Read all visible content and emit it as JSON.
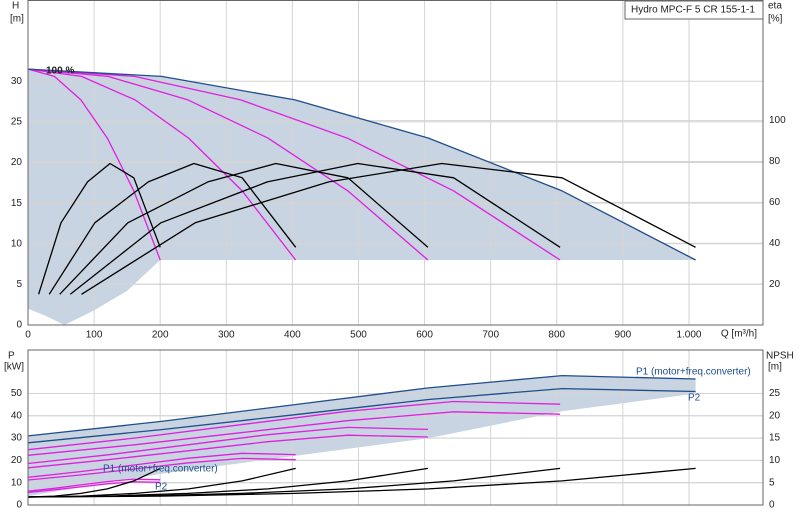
{
  "chart_data": [
    {
      "type": "line",
      "title": "Hydro MPC-F 5 CR 155-1-1",
      "ylabel": [
        "H",
        "[m]"
      ],
      "y2label": [
        "eta",
        "[%]"
      ],
      "xlabel": "Q [m³/h]",
      "annotations": [
        "100 %"
      ],
      "xlim": [
        0,
        1112
      ],
      "xticks": [
        0,
        100,
        200,
        300,
        400,
        500,
        600,
        700,
        800,
        900,
        {
          "value": 1000,
          "label": "1.000"
        }
      ],
      "ylim": [
        0,
        40
      ],
      "yticks": [
        0,
        5,
        10,
        15,
        20,
        25,
        30
      ],
      "y2lim": [
        0,
        159
      ],
      "y2ticks": [
        20,
        40,
        60,
        80,
        100
      ],
      "grid": true,
      "series": [
        {
          "fill": "#c8d4e1",
          "x": [
            0,
            202,
            404,
            606,
            808,
            1010,
            1010,
            200,
            150,
            100,
            55,
            25,
            0
          ],
          "values": [
            31.5,
            30.6,
            27.7,
            23,
            16.5,
            8,
            8,
            8,
            4.2,
            1.8,
            0,
            1.2,
            2
          ]
        },
        {
          "color": "#e020e0",
          "x": [
            0,
            40,
            80,
            120,
            160,
            200
          ],
          "values": [
            31.5,
            30.6,
            27.7,
            23,
            16.5,
            8
          ]
        },
        {
          "color": "#e020e0",
          "x": [
            0,
            81,
            162,
            243,
            324,
            405
          ],
          "values": [
            31.5,
            30.6,
            27.7,
            23,
            16.5,
            8
          ]
        },
        {
          "color": "#e020e0",
          "x": [
            0,
            121,
            242,
            363,
            484,
            605
          ],
          "values": [
            31.5,
            30.6,
            27.7,
            23,
            16.5,
            8
          ]
        },
        {
          "color": "#e020e0",
          "x": [
            0,
            161,
            322,
            483,
            644,
            805
          ],
          "values": [
            31.5,
            30.6,
            27.7,
            23,
            16.5,
            8
          ]
        },
        {
          "color": "#1f4e8c",
          "x": [
            0,
            202,
            404,
            606,
            808,
            1010
          ],
          "values": [
            31.5,
            30.6,
            27.7,
            23,
            16.5,
            8
          ]
        },
        {
          "color": "#000000",
          "axis": "y2",
          "x": [
            16,
            50,
            90,
            124,
            160,
            200
          ],
          "values": [
            15,
            50,
            70,
            79,
            72,
            38
          ]
        },
        {
          "color": "#000000",
          "axis": "y2",
          "x": [
            32,
            101,
            182,
            251,
            324,
            405
          ],
          "values": [
            15,
            50,
            70,
            79,
            72,
            38
          ]
        },
        {
          "color": "#000000",
          "axis": "y2",
          "x": [
            48,
            151,
            272,
            375,
            484,
            605
          ],
          "values": [
            15,
            50,
            70,
            79,
            72,
            38
          ]
        },
        {
          "color": "#000000",
          "axis": "y2",
          "x": [
            64,
            201,
            362,
            499,
            644,
            805
          ],
          "values": [
            15,
            50,
            70,
            79,
            72,
            38
          ]
        },
        {
          "color": "#000000",
          "axis": "y2",
          "x": [
            81,
            253,
            455,
            626,
            808,
            1010
          ],
          "values": [
            15,
            50,
            70,
            79,
            72,
            38
          ]
        }
      ]
    },
    {
      "type": "line",
      "ylabel": [
        "P",
        "[kW]"
      ],
      "y2label": [
        "NPSH",
        "[m]"
      ],
      "annotations": [
        "P1 (motor+freq.converter)",
        "P2",
        "P1 (motor+freq.converter)",
        "P2"
      ],
      "xlim": [
        0,
        1112
      ],
      "ylim": [
        0,
        69.5
      ],
      "yticks": [
        0,
        10,
        20,
        30,
        40,
        50
      ],
      "y2lim": [
        0,
        34.75
      ],
      "y2ticks": [
        0,
        5,
        10,
        15,
        20,
        25
      ],
      "grid": true,
      "series": [
        {
          "fill": "#c8d4e1",
          "x": [
            0,
            202,
            404,
            606,
            808,
            1010,
            1010,
            808,
            606,
            404,
            202,
            100,
            0
          ],
          "values": [
            31,
            37.5,
            45,
            52.5,
            58,
            56.5,
            50,
            42,
            30,
            22,
            14,
            9,
            4
          ]
        },
        {
          "color": "#e020e0",
          "x": [
            0,
            40,
            80,
            120,
            160,
            200
          ],
          "values": [
            6.2,
            7.5,
            9,
            10.5,
            11.6,
            11.3
          ]
        },
        {
          "color": "#e020e0",
          "x": [
            0,
            40,
            80,
            120,
            160,
            200
          ],
          "values": [
            5.6,
            6.8,
            8.1,
            9.5,
            10.4,
            10.2
          ]
        },
        {
          "color": "#e020e0",
          "x": [
            0,
            81,
            162,
            243,
            324,
            405
          ],
          "values": [
            12.4,
            15,
            18,
            21,
            23.2,
            22.6
          ]
        },
        {
          "color": "#e020e0",
          "x": [
            0,
            81,
            162,
            243,
            324,
            405
          ],
          "values": [
            11.2,
            13.5,
            16.2,
            18.9,
            20.9,
            20.3
          ]
        },
        {
          "color": "#e020e0",
          "x": [
            0,
            121,
            242,
            363,
            484,
            605
          ],
          "values": [
            18.6,
            22.5,
            27,
            31.5,
            34.8,
            33.9
          ]
        },
        {
          "color": "#e020e0",
          "x": [
            0,
            121,
            242,
            363,
            484,
            605
          ],
          "values": [
            16.7,
            20.3,
            24.3,
            28.4,
            31.3,
            30.5
          ]
        },
        {
          "color": "#e020e0",
          "x": [
            0,
            161,
            322,
            483,
            644,
            805
          ],
          "values": [
            24.8,
            30,
            36,
            42,
            46.4,
            45.2
          ]
        },
        {
          "color": "#e020e0",
          "x": [
            0,
            161,
            322,
            483,
            644,
            805
          ],
          "values": [
            22.3,
            27,
            32.4,
            37.8,
            41.8,
            40.7
          ]
        },
        {
          "color": "#1f4e8c",
          "x": [
            0,
            202,
            404,
            606,
            808,
            1010
          ],
          "values": [
            31,
            37.5,
            45,
            52.5,
            58,
            56.5
          ]
        },
        {
          "color": "#1f4e8c",
          "x": [
            0,
            202,
            404,
            606,
            808,
            1010
          ],
          "values": [
            27.9,
            33.8,
            40.5,
            47.3,
            52.2,
            50.9
          ]
        },
        {
          "color": "#000000",
          "axis": "y2",
          "x": [
            0,
            40,
            80,
            120,
            160,
            200
          ],
          "values": [
            1.8,
            2,
            2.6,
            3.6,
            5.4,
            8.2
          ]
        },
        {
          "color": "#000000",
          "axis": "y2",
          "x": [
            0,
            81,
            162,
            243,
            324,
            405
          ],
          "values": [
            1.8,
            2,
            2.6,
            3.6,
            5.4,
            8.2
          ]
        },
        {
          "color": "#000000",
          "axis": "y2",
          "x": [
            0,
            121,
            242,
            363,
            484,
            605
          ],
          "values": [
            1.8,
            2,
            2.6,
            3.6,
            5.4,
            8.2
          ]
        },
        {
          "color": "#000000",
          "axis": "y2",
          "x": [
            0,
            161,
            322,
            483,
            644,
            805
          ],
          "values": [
            1.8,
            2,
            2.6,
            3.6,
            5.4,
            8.2
          ]
        },
        {
          "color": "#000000",
          "axis": "y2",
          "x": [
            0,
            202,
            404,
            606,
            808,
            1010
          ],
          "values": [
            1.8,
            2,
            2.6,
            3.6,
            5.4,
            8.2
          ]
        }
      ]
    }
  ]
}
